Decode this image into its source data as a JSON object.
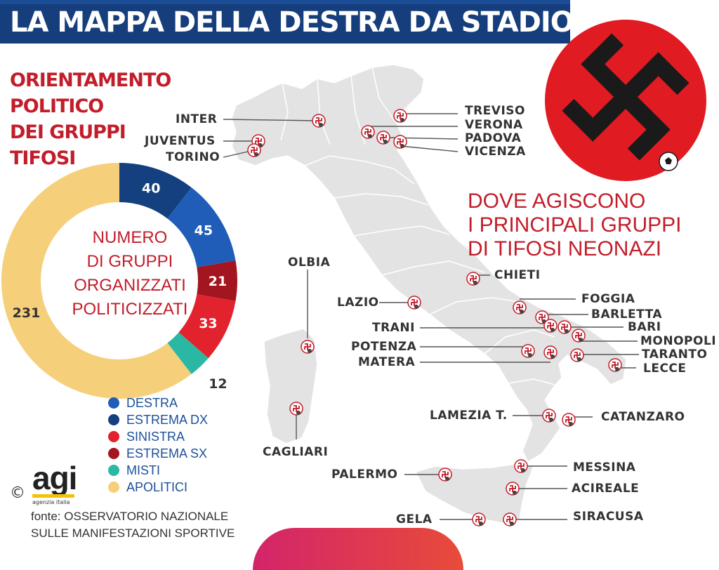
{
  "header": {
    "title": "LA MAPPA DELLA DESTRA DA STADIO"
  },
  "subtitle_lines": [
    "ORIENTAMENTO",
    "POLITICO",
    "DEI GRUPPI",
    "TIFOSI"
  ],
  "donut": {
    "center_lines": [
      "NUMERO",
      "DI GRUPPI",
      "ORGANIZZATI",
      "POLITICIZZATI"
    ]
  },
  "chart_data": {
    "type": "pie",
    "donut": true,
    "categories": [
      "DESTRA",
      "ESTREMA DX",
      "SINISTRA",
      "ESTREMA SX",
      "MISTI",
      "APOLITICI"
    ],
    "values": [
      45,
      40,
      33,
      21,
      12,
      231
    ],
    "colors": {
      "DESTRA": "#1f5db8",
      "ESTREMA DX": "#15407f",
      "SINISTRA": "#e2222c",
      "ESTREMA SX": "#a3151f",
      "MISTI": "#2ab8a5",
      "APOLITICI": "#f6cf7a"
    },
    "order_clockwise_from_top": [
      "ESTREMA DX",
      "DESTRA",
      "ESTREMA SX",
      "SINISTRA",
      "MISTI",
      "APOLITICI"
    ],
    "legend_placement": "bottom"
  },
  "legend": [
    {
      "label": "DESTRA",
      "color": "#1f5db8"
    },
    {
      "label": "ESTREMA DX",
      "color": "#15407f"
    },
    {
      "label": "SINISTRA",
      "color": "#e2222c"
    },
    {
      "label": "ESTREMA SX",
      "color": "#a3151f"
    },
    {
      "label": "MISTI",
      "color": "#2ab8a5"
    },
    {
      "label": "APOLITICI",
      "color": "#f6cf7a"
    }
  ],
  "logo": {
    "copyright": "©",
    "name": "agi",
    "tagline": "agenzia italia"
  },
  "source_lines": [
    "fonte: OSSERVATORIO NAZIONALE",
    "SULLE MANIFESTAZIONI SPORTIVE"
  ],
  "map": {
    "heading_lines": [
      "DOVE AGISCONO",
      "I PRINCIPALI GRUPPI",
      "DI TIFOSI NEONAZI"
    ],
    "cities": [
      "INTER",
      "JUVENTUS",
      "TORINO",
      "TREVISO",
      "VERONA",
      "PADOVA",
      "VICENZA",
      "OLBIA",
      "CHIETI",
      "LAZIO",
      "FOGGIA",
      "BARLETTA",
      "TRANI",
      "BARI",
      "MONOPOLI",
      "POTENZA",
      "TARANTO",
      "MATERA",
      "LECCE",
      "LAMEZIA T.",
      "CATANZARO",
      "CAGLIARI",
      "PALERMO",
      "MESSINA",
      "ACIREALE",
      "GELA",
      "SIRACUSA"
    ]
  },
  "colors": {
    "title_bar": "#163e7c",
    "accent_red": "#c21d2a",
    "map_fill": "#e3e3e3",
    "badge_red": "#e11b22"
  }
}
